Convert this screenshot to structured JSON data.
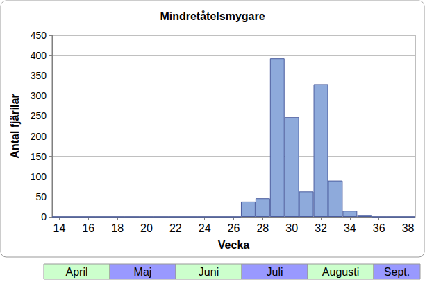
{
  "chart_data": {
    "type": "bar",
    "title": "Mindretåtelsmygare",
    "x_label": "Vecka",
    "y_label": "Antal fjärilar",
    "x": [
      14,
      15,
      16,
      17,
      18,
      19,
      20,
      21,
      22,
      23,
      24,
      25,
      26,
      27,
      28,
      29,
      30,
      31,
      32,
      33,
      34,
      35,
      36,
      37,
      38
    ],
    "values": [
      0,
      0,
      0,
      0,
      0,
      0,
      0,
      0,
      0,
      0,
      0,
      0,
      0,
      38,
      46,
      393,
      247,
      63,
      329,
      90,
      15,
      3,
      0,
      0,
      0
    ],
    "color": "#8eaadb",
    "xlim": [
      13.5,
      38.5
    ],
    "xticks": [
      14,
      16,
      18,
      20,
      22,
      24,
      26,
      28,
      30,
      32,
      34,
      36,
      38
    ],
    "ylim": [
      0,
      450
    ],
    "yticks": [
      0,
      50,
      100,
      150,
      200,
      250,
      300,
      350,
      400,
      450
    ],
    "grid": true,
    "annotations": [
      "April",
      "Maj",
      "Juni",
      "Juli",
      "Augusti",
      "Sept."
    ]
  }
}
